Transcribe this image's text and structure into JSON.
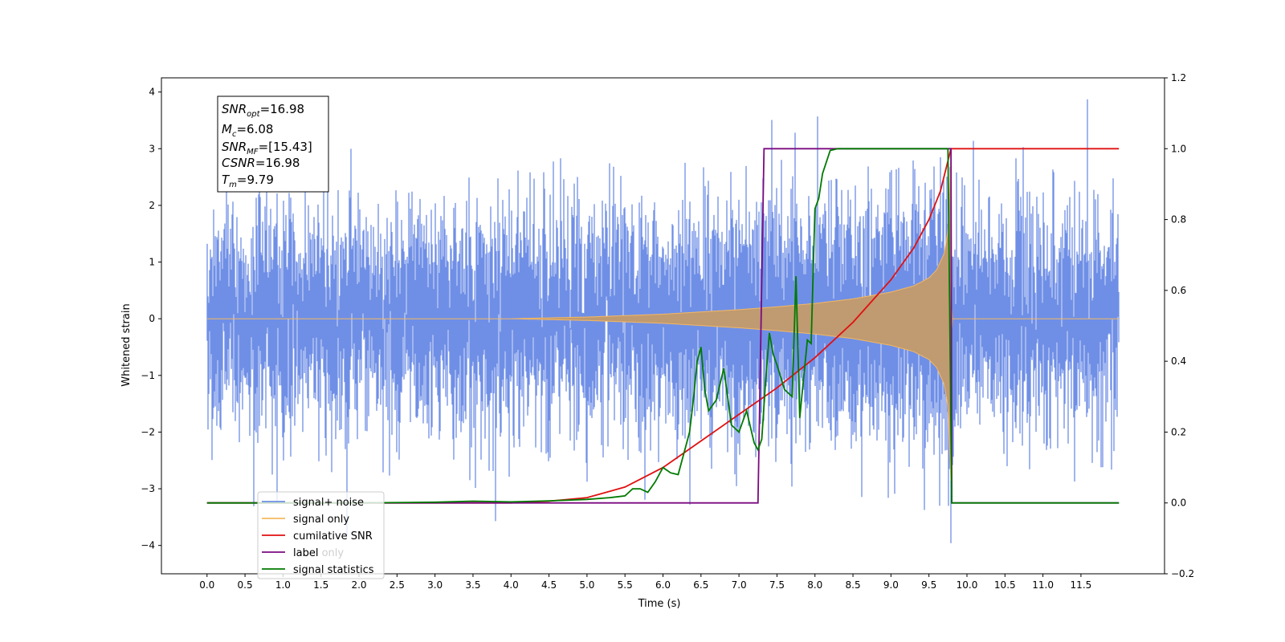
{
  "chart_data": {
    "type": "line",
    "title": "",
    "xlabel": "Time (s)",
    "ylabel": "Whitened strain",
    "ylabel_right": "",
    "xlim": [
      -0.6,
      12.6
    ],
    "ylim": [
      -4.5,
      4.25
    ],
    "ylim_right": [
      -0.2,
      1.2
    ],
    "x_ticks": [
      "0.0",
      "0.5",
      "1.0",
      "1.5",
      "2.0",
      "2.5",
      "3.0",
      "3.5",
      "4.0",
      "4.5",
      "5.0",
      "5.5",
      "6.0",
      "6.5",
      "7.0",
      "7.5",
      "8.0",
      "8.5",
      "9.0",
      "9.5",
      "10.0",
      "10.5",
      "11.0",
      "11.5"
    ],
    "y_ticks_left": [
      "4",
      "3",
      "2",
      "1",
      "0",
      "−1",
      "−2",
      "−3",
      "−4"
    ],
    "y_ticks_right": [
      "1.2",
      "1.0",
      "0.8",
      "0.6",
      "0.4",
      "0.2",
      "0.0",
      "−0.2"
    ],
    "grid": false,
    "legend_position": "lower-left",
    "annotation": {
      "snr_opt": {
        "sym": "SNR",
        "sub": "opt",
        "val": "=16.98"
      },
      "mc": {
        "sym": "M",
        "sub": "c",
        "val": "=6.08"
      },
      "snr_mf": {
        "sym": "SNR",
        "sub": "MF",
        "val": "=[15.43]"
      },
      "csnr": {
        "sym": "CSNR",
        "val": "=16.98"
      },
      "tm": {
        "sym": "T",
        "sub": "m",
        "val": "=9.79"
      }
    },
    "legend": [
      "signal+ noise",
      "signal only",
      "cumilative SNR",
      "label",
      "signal statistics"
    ],
    "legend_overlap_text": "label only",
    "colors": {
      "noise": "#6f8fe6",
      "signal": "#f5b860",
      "signal_fill": "#c09a70",
      "snr": "#e01010",
      "label": "#7b0a80",
      "stats": "#007a00"
    },
    "series": [
      {
        "name": "signal+ noise",
        "axis": "left",
        "x_range": [
          0.0,
          12.0
        ],
        "std": 0.95,
        "peak_max": 3.87,
        "peak_min": -4.1
      },
      {
        "name": "signal only",
        "axis": "left",
        "x": [
          0.0,
          4.0,
          5.0,
          6.0,
          7.0,
          7.5,
          8.0,
          8.5,
          9.0,
          9.3,
          9.5,
          9.6,
          9.7,
          9.75,
          9.79,
          9.8,
          12.0
        ],
        "envelope": [
          0.0,
          0.0,
          0.03,
          0.08,
          0.16,
          0.21,
          0.27,
          0.35,
          0.47,
          0.58,
          0.72,
          0.86,
          1.15,
          1.55,
          2.9,
          0.0,
          0.0
        ]
      },
      {
        "name": "cumilative SNR",
        "axis": "right",
        "x": [
          0.0,
          4.0,
          4.5,
          5.0,
          5.5,
          6.0,
          6.5,
          7.0,
          7.5,
          8.0,
          8.5,
          9.0,
          9.3,
          9.5,
          9.65,
          9.79,
          12.0
        ],
        "y": [
          0.0,
          0.0,
          0.005,
          0.015,
          0.045,
          0.1,
          0.175,
          0.25,
          0.325,
          0.41,
          0.51,
          0.63,
          0.72,
          0.8,
          0.88,
          1.0,
          1.0
        ]
      },
      {
        "name": "label",
        "axis": "right",
        "x": [
          0.0,
          7.25,
          7.33,
          9.79,
          9.8,
          12.0
        ],
        "y": [
          0.0,
          0.0,
          1.0,
          1.0,
          0.0,
          0.0
        ]
      },
      {
        "name": "signal statistics",
        "axis": "right",
        "x": [
          0.0,
          1.0,
          2.0,
          3.0,
          3.5,
          4.0,
          4.5,
          5.0,
          5.3,
          5.5,
          5.6,
          5.7,
          5.8,
          5.9,
          6.0,
          6.1,
          6.2,
          6.3,
          6.35,
          6.4,
          6.45,
          6.5,
          6.55,
          6.6,
          6.7,
          6.8,
          6.9,
          7.0,
          7.1,
          7.2,
          7.25,
          7.3,
          7.35,
          7.4,
          7.45,
          7.5,
          7.6,
          7.7,
          7.75,
          7.8,
          7.85,
          7.9,
          7.95,
          8.0,
          8.05,
          8.1,
          8.2,
          8.3,
          9.0,
          9.5,
          9.75,
          9.8,
          10.0,
          12.0
        ],
        "y": [
          0.0,
          0.0,
          0.0,
          0.002,
          0.005,
          0.003,
          0.006,
          0.01,
          0.015,
          0.02,
          0.04,
          0.04,
          0.03,
          0.06,
          0.1,
          0.085,
          0.08,
          0.16,
          0.2,
          0.29,
          0.4,
          0.44,
          0.32,
          0.26,
          0.29,
          0.38,
          0.22,
          0.2,
          0.26,
          0.17,
          0.15,
          0.18,
          0.34,
          0.48,
          0.42,
          0.39,
          0.32,
          0.3,
          0.64,
          0.24,
          0.35,
          0.46,
          0.45,
          0.83,
          0.86,
          0.93,
          0.995,
          1.0,
          1.0,
          1.0,
          1.0,
          0.0,
          0.0,
          0.0
        ]
      }
    ]
  }
}
